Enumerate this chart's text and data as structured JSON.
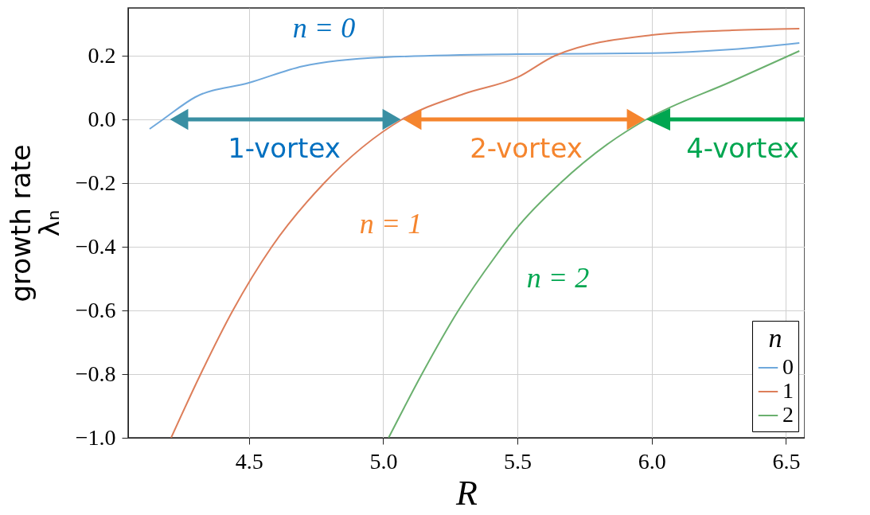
{
  "chart_data": {
    "type": "line",
    "xlabel": "R",
    "ylabel": "growth rate\nλₙ",
    "legend_title": "n",
    "xlim": [
      4.05,
      6.57
    ],
    "ylim": [
      -1.0,
      0.35
    ],
    "xticks": [
      4.5,
      {
        "value": 5.0,
        "label": "5.0"
      },
      5.5,
      {
        "value": 6.0,
        "label": "6.0"
      },
      6.5
    ],
    "yticks": [
      {
        "value": -1.0,
        "label": "−1.0"
      },
      {
        "value": -0.8,
        "label": "−0.8"
      },
      {
        "value": -0.6,
        "label": "−0.6"
      },
      {
        "value": -0.4,
        "label": "−0.4"
      },
      {
        "value": -0.2,
        "label": "−0.2"
      },
      {
        "value": 0.0,
        "label": "0.0"
      },
      {
        "value": 0.2,
        "label": "0.2"
      }
    ],
    "grid": true,
    "legend": "bottom right",
    "line_style": "solid",
    "marker": "none",
    "series": [
      {
        "name": "0",
        "color": "#6fa8dc",
        "x": [
          4.13,
          4.18,
          4.3,
          4.5,
          4.7,
          5.0,
          5.5,
          6.0,
          6.3,
          6.55
        ],
        "values": [
          -0.03,
          0.0,
          0.07,
          0.115,
          0.167,
          0.195,
          0.205,
          0.208,
          0.22,
          0.24
        ]
      },
      {
        "name": "1",
        "color": "#dd7e5a",
        "x": [
          4.21,
          4.32,
          4.44,
          4.585,
          4.78,
          5.07,
          5.3,
          5.5,
          5.64,
          6.0,
          6.3,
          6.55
        ],
        "values": [
          -1.0,
          -0.8,
          -0.6,
          -0.4,
          -0.2,
          0.0,
          0.08,
          0.132,
          0.2,
          0.265,
          0.28,
          0.285
        ]
      },
      {
        "name": "2",
        "color": "#6ab06e",
        "x": [
          5.02,
          5.144,
          5.28,
          5.418,
          5.506,
          5.66,
          5.84,
          5.98,
          6.3,
          6.55
        ],
        "values": [
          -1.0,
          -0.8,
          -0.6,
          -0.43,
          -0.333,
          -0.2,
          -0.075,
          0.0,
          0.12,
          0.215
        ]
      }
    ],
    "annotations": [
      "n = 0",
      "n = 1",
      "n = 2",
      "1-vortex",
      "2-vortex",
      "4-vortex"
    ]
  }
}
